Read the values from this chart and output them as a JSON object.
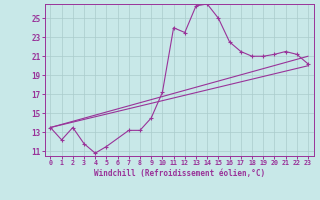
{
  "xlabel": "Windchill (Refroidissement éolien,°C)",
  "bg_color": "#c8e8e8",
  "grid_color": "#aacccc",
  "line_color": "#993399",
  "xlim": [
    -0.5,
    23.5
  ],
  "ylim": [
    10.5,
    26.5
  ],
  "yticks": [
    11,
    13,
    15,
    17,
    19,
    21,
    23,
    25
  ],
  "xticks": [
    0,
    1,
    2,
    3,
    4,
    5,
    6,
    7,
    8,
    9,
    10,
    11,
    12,
    13,
    14,
    15,
    16,
    17,
    18,
    19,
    20,
    21,
    22,
    23
  ],
  "line1_x": [
    0,
    1,
    2,
    3,
    4,
    5,
    7,
    8,
    9,
    10,
    11,
    12,
    13,
    14,
    15,
    16,
    17,
    18,
    19,
    20,
    21,
    22,
    23
  ],
  "line1_y": [
    13.5,
    12.2,
    13.5,
    11.8,
    10.8,
    11.5,
    13.2,
    13.2,
    14.5,
    17.2,
    24.0,
    23.5,
    26.3,
    26.5,
    25.0,
    22.5,
    21.5,
    21.0,
    21.0,
    21.2,
    21.5,
    21.2,
    20.2
  ],
  "line2_x": [
    0,
    23
  ],
  "line2_y": [
    13.5,
    21.0
  ],
  "line3_x": [
    0,
    23
  ],
  "line3_y": [
    13.5,
    20.0
  ]
}
